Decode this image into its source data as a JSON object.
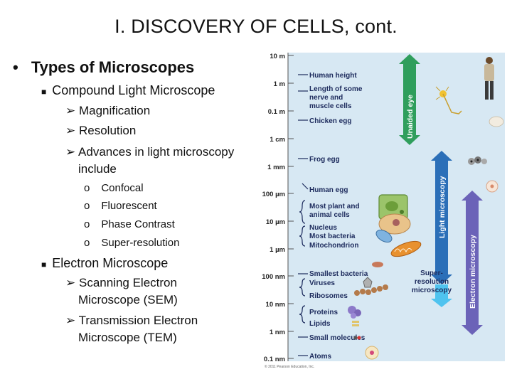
{
  "slide": {
    "title": "I.  DISCOVERY OF CELLS, cont.",
    "main_bullet": "Types of Microscopes",
    "compound": {
      "label": "Compound Light Microscope",
      "points": [
        "Magnification",
        "Resolution"
      ],
      "advances_line1": "Advances in light microscopy",
      "advances_line2": "include",
      "sub_items": [
        "Confocal",
        "Fluorescent",
        "Phase Contrast",
        "Super-resolution"
      ]
    },
    "electron": {
      "label": "Electron Microscope",
      "sem_line1": "Scanning Electron",
      "sem_line2": "Microscope (SEM)",
      "tem_line1": "Transmission Electron",
      "tem_line2": "Microscope (TEM)"
    }
  },
  "figure": {
    "scale": [
      "10 m",
      "1 m",
      "0.1 m",
      "1 cm",
      "1 mm",
      "100 µm",
      "10 µm",
      "1 µm",
      "100 nm",
      "10 nm",
      "1 nm",
      "0.1 nm"
    ],
    "items": [
      "Human height",
      "Length of some",
      "nerve and",
      "muscle cells",
      "Chicken egg",
      "Frog egg",
      "Human egg",
      "Most plant and",
      "animal cells",
      "Nucleus",
      "Most bacteria",
      "Mitochondrion",
      "Smallest bacteria",
      "Viruses",
      "Ribosomes",
      "Proteins",
      "Lipids",
      "Small molecules",
      "Atoms"
    ],
    "arrows": {
      "unaided": "Unaided eye",
      "light": "Light microscopy",
      "electron": "Electron microscopy",
      "super_res": [
        "Super-",
        "resolution",
        "microscopy"
      ]
    },
    "copyright": "© 2011 Pearson Education, Inc.",
    "colors": {
      "panel": "#d7e8f3",
      "unaided": "#2f9e5c",
      "light": "#2b6fb8",
      "electron": "#6b63b8",
      "super": "#4fc3ef"
    }
  }
}
